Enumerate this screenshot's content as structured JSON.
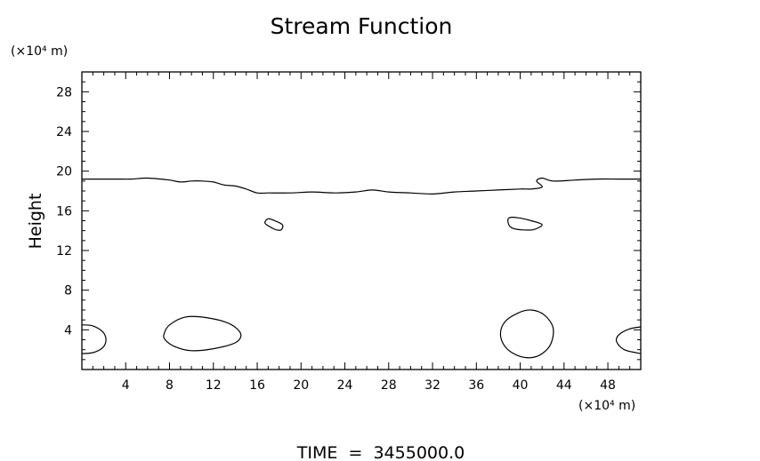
{
  "chart_data": {
    "type": "contour",
    "title": "Stream Function",
    "ylabel": "Height",
    "yunits": "(×10⁴ m)",
    "xunits": "(×10⁴ m)",
    "footer": "TIME  =  3455000.0",
    "xlim": [
      0,
      51
    ],
    "ylim": [
      0,
      30
    ],
    "xticks": [
      4,
      8,
      12,
      16,
      20,
      24,
      28,
      32,
      36,
      40,
      44,
      48
    ],
    "yticks": [
      4,
      8,
      12,
      16,
      20,
      24,
      28
    ],
    "contours": [
      {
        "name": "upper-contour",
        "closed": false,
        "points": [
          [
            0,
            19.2
          ],
          [
            3,
            19.2
          ],
          [
            4.5,
            19.2
          ],
          [
            6,
            19.3
          ],
          [
            8,
            19.1
          ],
          [
            9,
            18.9
          ],
          [
            10,
            19
          ],
          [
            11,
            19
          ],
          [
            12,
            18.9
          ],
          [
            13,
            18.6
          ],
          [
            14,
            18.5
          ],
          [
            15,
            18.2
          ],
          [
            16,
            17.8
          ],
          [
            17,
            17.8
          ],
          [
            19,
            17.8
          ],
          [
            21,
            17.9
          ],
          [
            23,
            17.8
          ],
          [
            25,
            17.9
          ],
          [
            26.5,
            18.1
          ],
          [
            28,
            17.9
          ],
          [
            30,
            17.8
          ],
          [
            32,
            17.7
          ],
          [
            34,
            17.9
          ],
          [
            36,
            18
          ],
          [
            38,
            18.1
          ],
          [
            40,
            18.2
          ],
          [
            41,
            18.2
          ],
          [
            42,
            18.4
          ],
          [
            41.5,
            19
          ],
          [
            42,
            19.3
          ],
          [
            43,
            19
          ],
          [
            45,
            19.1
          ],
          [
            47,
            19.2
          ],
          [
            49,
            19.2
          ],
          [
            51,
            19.2
          ]
        ]
      },
      {
        "name": "small-contour-1",
        "closed": true,
        "points": [
          [
            16.7,
            14.8
          ],
          [
            17,
            15.2
          ],
          [
            17.6,
            15
          ],
          [
            18.3,
            14.6
          ],
          [
            18.2,
            14.1
          ],
          [
            17.7,
            14.1
          ],
          [
            17,
            14.5
          ]
        ]
      },
      {
        "name": "small-contour-2",
        "closed": true,
        "points": [
          [
            38.9,
            14.8
          ],
          [
            39,
            15.3
          ],
          [
            39.8,
            15.3
          ],
          [
            41,
            15
          ],
          [
            42,
            14.6
          ],
          [
            41.2,
            14.1
          ],
          [
            40,
            14.1
          ],
          [
            39.2,
            14.3
          ]
        ]
      },
      {
        "name": "low-contour-left",
        "closed": false,
        "points": [
          [
            0,
            4.5
          ],
          [
            1,
            4.4
          ],
          [
            1.9,
            3.8
          ],
          [
            2.2,
            3
          ],
          [
            1.9,
            2.2
          ],
          [
            1,
            1.7
          ],
          [
            0,
            1.6
          ]
        ]
      },
      {
        "name": "low-contour-a",
        "closed": true,
        "points": [
          [
            7.5,
            3.6
          ],
          [
            8,
            4.5
          ],
          [
            9.5,
            5.3
          ],
          [
            11.5,
            5.2
          ],
          [
            13.5,
            4.6
          ],
          [
            14.5,
            3.6
          ],
          [
            14,
            2.7
          ],
          [
            12,
            2.1
          ],
          [
            10,
            1.9
          ],
          [
            8.5,
            2.3
          ],
          [
            7.6,
            3
          ]
        ]
      },
      {
        "name": "low-contour-b",
        "closed": true,
        "points": [
          [
            38.2,
            3.5
          ],
          [
            38.6,
            4.8
          ],
          [
            39.8,
            5.7
          ],
          [
            41,
            6
          ],
          [
            42.2,
            5.5
          ],
          [
            43,
            4.2
          ],
          [
            42.8,
            2.6
          ],
          [
            42,
            1.6
          ],
          [
            41,
            1.2
          ],
          [
            39.8,
            1.4
          ],
          [
            38.7,
            2.2
          ]
        ]
      },
      {
        "name": "low-contour-right",
        "closed": false,
        "points": [
          [
            51,
            4.3
          ],
          [
            50,
            4.1
          ],
          [
            49,
            3.5
          ],
          [
            48.8,
            2.8
          ],
          [
            49.5,
            2
          ],
          [
            51,
            1.6
          ]
        ]
      }
    ]
  }
}
